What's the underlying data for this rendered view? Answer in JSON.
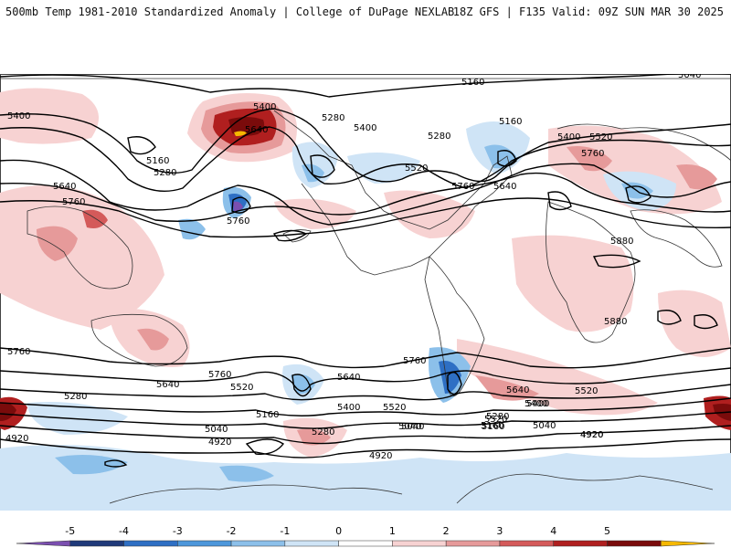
{
  "header": {
    "left": "500mb Temp 1981-2010 Standardized Anomaly | College of DuPage NEXLAB",
    "right": "18Z GFS | F135 Valid: 09Z SUN MAR 30 2025"
  },
  "contour_labels": [
    "5040",
    "5160",
    "5400",
    "5280",
    "5400",
    "5160",
    "5280",
    "5400",
    "5520",
    "5760",
    "5640",
    "5400",
    "5160",
    "5280",
    "5640",
    "5760",
    "5760",
    "5520",
    "5640",
    "5880",
    "5880",
    "5760",
    "5760",
    "5640",
    "5520",
    "5280",
    "4920",
    "5760",
    "5640",
    "5520",
    "5400",
    "5160",
    "5040",
    "4920",
    "5280",
    "5040",
    "5160",
    "5040",
    "5400",
    "5520",
    "4920",
    "5760",
    "5640",
    "5520",
    "5400",
    "5280",
    "5160",
    "5040",
    "4920",
    "4920"
  ],
  "colorbar": {
    "ticks": [
      "-5",
      "-4",
      "-3",
      "-2",
      "-1",
      "0",
      "1",
      "2",
      "3",
      "4",
      "5"
    ],
    "colors": [
      "#7b4fb0",
      "#1f3a7a",
      "#2e6fc4",
      "#4d97db",
      "#8cc0ea",
      "#cfe4f6",
      "#ffffff",
      "#f7d2d2",
      "#e69a9a",
      "#d45a5a",
      "#b01f1f",
      "#7a0b0b",
      "#f5b800"
    ]
  }
}
